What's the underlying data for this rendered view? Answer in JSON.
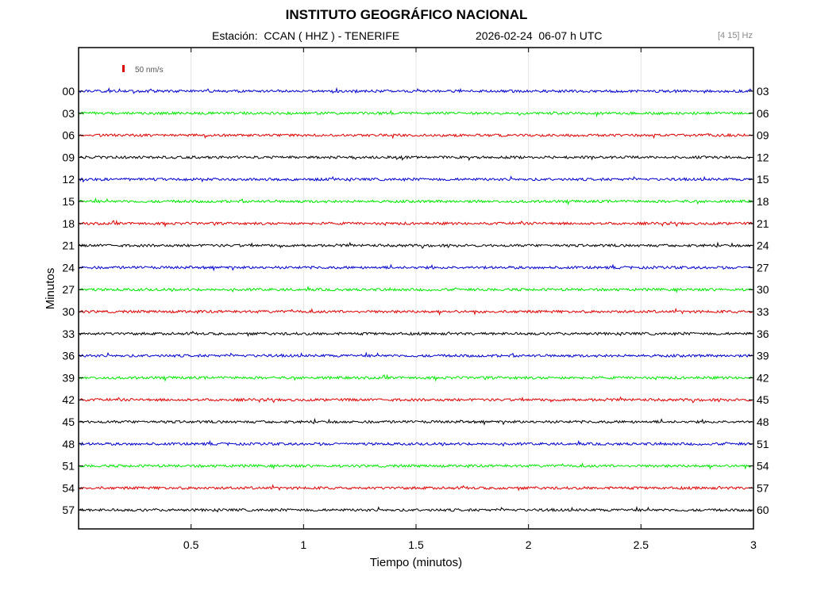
{
  "header": {
    "title": "INSTITUTO GEOGRÁFICO NACIONAL",
    "station_label": "Estación:  CCAN ( HHZ ) - TENERIFE",
    "datetime_label": "2026-02-24  06-07 h UTC",
    "filter_label": "[4 15] Hz"
  },
  "chart_data": {
    "type": "line",
    "title": "INSTITUTO GEOGRÁFICO NACIONAL",
    "xlabel": "Tiempo (minutos)",
    "ylabel": "Minutos",
    "xlim": [
      0,
      3
    ],
    "x_ticks": [
      "0.5",
      "1",
      "1.5",
      "2",
      "2.5",
      "3"
    ],
    "x_tick_values": [
      0.5,
      1,
      1.5,
      2,
      2.5,
      3
    ],
    "left_labels": [
      "00",
      "03",
      "06",
      "09",
      "12",
      "15",
      "18",
      "21",
      "24",
      "27",
      "30",
      "33",
      "36",
      "39",
      "42",
      "45",
      "48",
      "51",
      "54",
      "57"
    ],
    "right_labels": [
      "03",
      "06",
      "09",
      "12",
      "15",
      "18",
      "21",
      "24",
      "27",
      "30",
      "33",
      "36",
      "39",
      "42",
      "45",
      "48",
      "51",
      "54",
      "57",
      "60"
    ],
    "trace_colors": [
      "#0000cc",
      "#00e600",
      "#dd0000",
      "#000000"
    ],
    "scale_bar": {
      "label": "50 nm/s",
      "color": "#dd0000"
    },
    "grid_vertical": true,
    "series": [
      {
        "name": "00",
        "color": "#0000cc"
      },
      {
        "name": "03",
        "color": "#00e600"
      },
      {
        "name": "06",
        "color": "#dd0000"
      },
      {
        "name": "09",
        "color": "#000000"
      },
      {
        "name": "12",
        "color": "#0000cc"
      },
      {
        "name": "15",
        "color": "#00e600"
      },
      {
        "name": "18",
        "color": "#dd0000"
      },
      {
        "name": "21",
        "color": "#000000"
      },
      {
        "name": "24",
        "color": "#0000cc"
      },
      {
        "name": "27",
        "color": "#00e600"
      },
      {
        "name": "30",
        "color": "#dd0000"
      },
      {
        "name": "33",
        "color": "#000000"
      },
      {
        "name": "36",
        "color": "#0000cc"
      },
      {
        "name": "39",
        "color": "#00e600"
      },
      {
        "name": "42",
        "color": "#dd0000"
      },
      {
        "name": "45",
        "color": "#000000"
      },
      {
        "name": "48",
        "color": "#0000cc"
      },
      {
        "name": "51",
        "color": "#00e600"
      },
      {
        "name": "54",
        "color": "#dd0000"
      },
      {
        "name": "57",
        "color": "#000000"
      }
    ]
  }
}
